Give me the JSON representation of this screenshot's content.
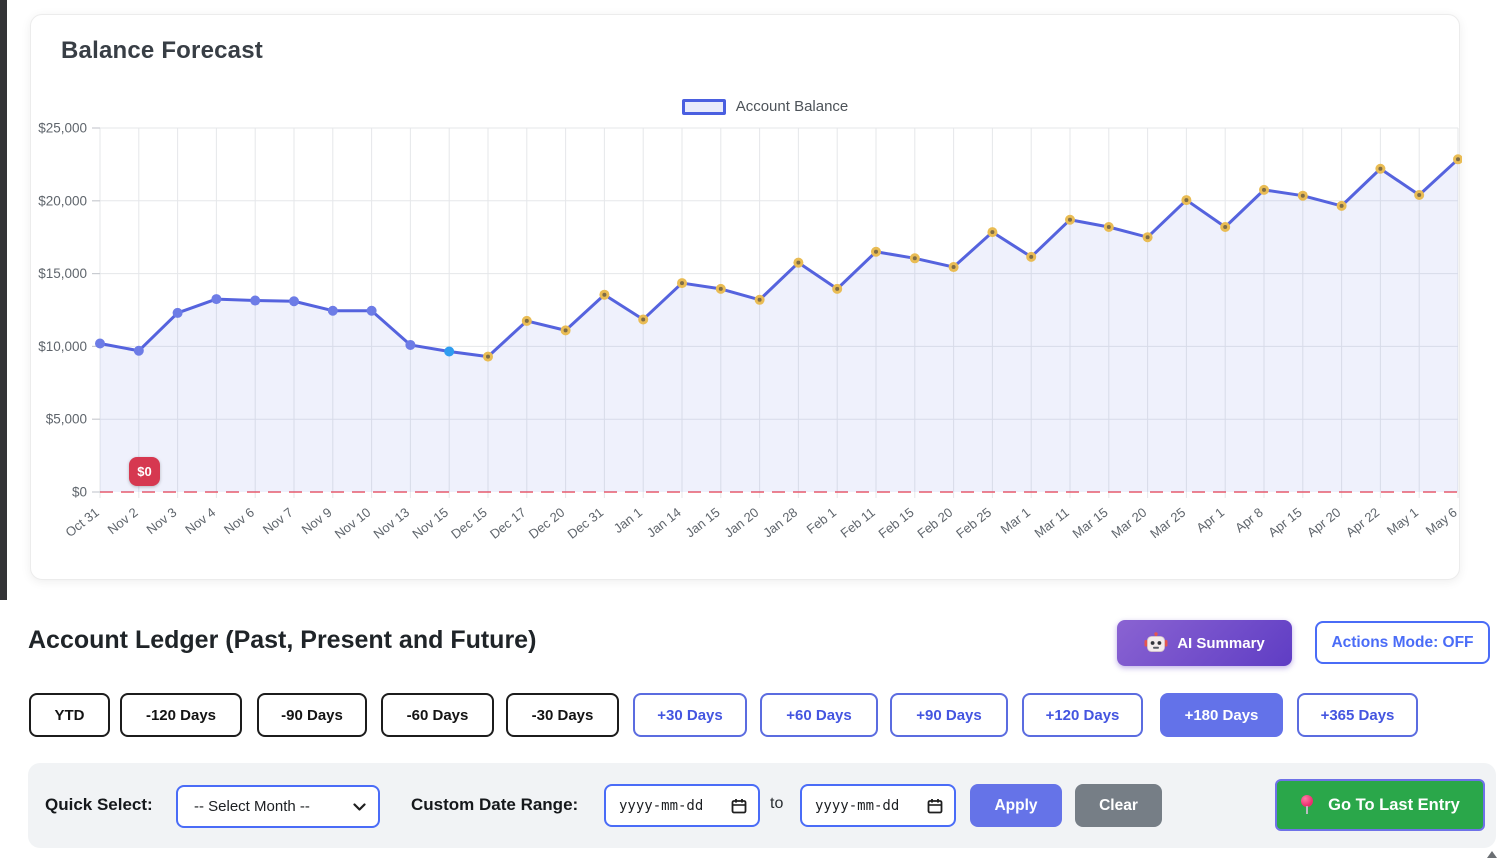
{
  "chart_card": {
    "title": "Balance Forecast",
    "legend": {
      "label": "Account Balance",
      "swatch_border": "#4a5fe0",
      "swatch_fill": "#e8ebfb"
    },
    "zero_badge": {
      "text": "$0",
      "bg": "#d63850"
    }
  },
  "chart_data": {
    "type": "line",
    "title": "Balance Forecast",
    "x": [
      "Oct 31",
      "Nov 2",
      "Nov 3",
      "Nov 4",
      "Nov 6",
      "Nov 7",
      "Nov 9",
      "Nov 10",
      "Nov 13",
      "Nov 15",
      "Dec 15",
      "Dec 17",
      "Dec 20",
      "Dec 31",
      "Jan 1",
      "Jan 14",
      "Jan 15",
      "Jan 20",
      "Jan 28",
      "Feb 1",
      "Feb 11",
      "Feb 15",
      "Feb 20",
      "Feb 25",
      "Mar 1",
      "Mar 11",
      "Mar 15",
      "Mar 20",
      "Mar 25",
      "Apr 1",
      "Apr 8",
      "Apr 15",
      "Apr 20",
      "Apr 22",
      "May 1",
      "May 6"
    ],
    "series": [
      {
        "name": "Account Balance",
        "values": [
          10200,
          9700,
          12300,
          13250,
          13150,
          13100,
          12450,
          12450,
          10100,
          9650,
          9300,
          11750,
          11100,
          13550,
          11850,
          14350,
          13950,
          13200,
          15750,
          13950,
          16500,
          16050,
          15450,
          17850,
          16150,
          18700,
          18200,
          17500,
          20050,
          18200,
          20750,
          20350,
          19650,
          22200,
          20400,
          22850
        ]
      }
    ],
    "ylim": [
      0,
      25000
    ],
    "y_ticks": [
      {
        "v": 25000,
        "label": "$25,000"
      },
      {
        "v": 20000,
        "label": "$20,000"
      },
      {
        "v": 15000,
        "label": "$15,000"
      },
      {
        "v": 10000,
        "label": "$10,000"
      },
      {
        "v": 5000,
        "label": "$5,000"
      },
      {
        "v": 0,
        "label": "$0"
      }
    ],
    "today_index": 9,
    "legend_position": "top-center",
    "grid": true,
    "zero_line": {
      "style": "dashed",
      "color": "#ec5a68"
    },
    "colors": {
      "line": "#5563de",
      "fill": "rgba(99,113,222,0.10)",
      "past_point": "#6d7ce6",
      "today_point": "#2f9df0",
      "future_point": "#e9bc54",
      "future_point_center": "#7e6c47",
      "grid": "#e5e7ea",
      "tick_text": "#5f656c"
    }
  },
  "ledger": {
    "heading": "Account Ledger (Past, Present and Future)",
    "ai_summary": {
      "label": "AI Summary",
      "icon": "robot-icon",
      "bg_gradient": [
        "#8a63d2",
        "#5f3dc4"
      ]
    },
    "actions_mode": {
      "label": "Actions Mode: OFF",
      "accent": "#4a6cf7"
    }
  },
  "range_buttons": [
    {
      "label": "YTD",
      "style": "dark-outline"
    },
    {
      "label": "-120 Days",
      "style": "dark-outline"
    },
    {
      "label": "-90 Days",
      "style": "dark-outline"
    },
    {
      "label": "-60 Days",
      "style": "dark-outline"
    },
    {
      "label": "-30 Days",
      "style": "dark-outline"
    },
    {
      "label": "+30 Days",
      "style": "blue-outline"
    },
    {
      "label": "+60 Days",
      "style": "blue-outline"
    },
    {
      "label": "+90 Days",
      "style": "blue-outline"
    },
    {
      "label": "+120 Days",
      "style": "blue-outline"
    },
    {
      "label": "+180 Days",
      "style": "blue-solid-active"
    },
    {
      "label": "+365 Days",
      "style": "blue-outline"
    }
  ],
  "filter_bar": {
    "quick_select_label": "Quick Select:",
    "month_select": {
      "value": "-- Select Month --",
      "icon": "chevron-down-icon"
    },
    "custom_range_label": "Custom Date Range:",
    "date_from": {
      "placeholder": "yyyy-mm-dd",
      "icon": "calendar-icon"
    },
    "to_label": "to",
    "date_to": {
      "placeholder": "yyyy-mm-dd",
      "icon": "calendar-icon"
    },
    "apply_label": "Apply",
    "clear_label": "Clear",
    "go_to_last": {
      "label": "Go To Last Entry",
      "icon": "pushpin-icon",
      "bg": "#2aa74a"
    }
  }
}
